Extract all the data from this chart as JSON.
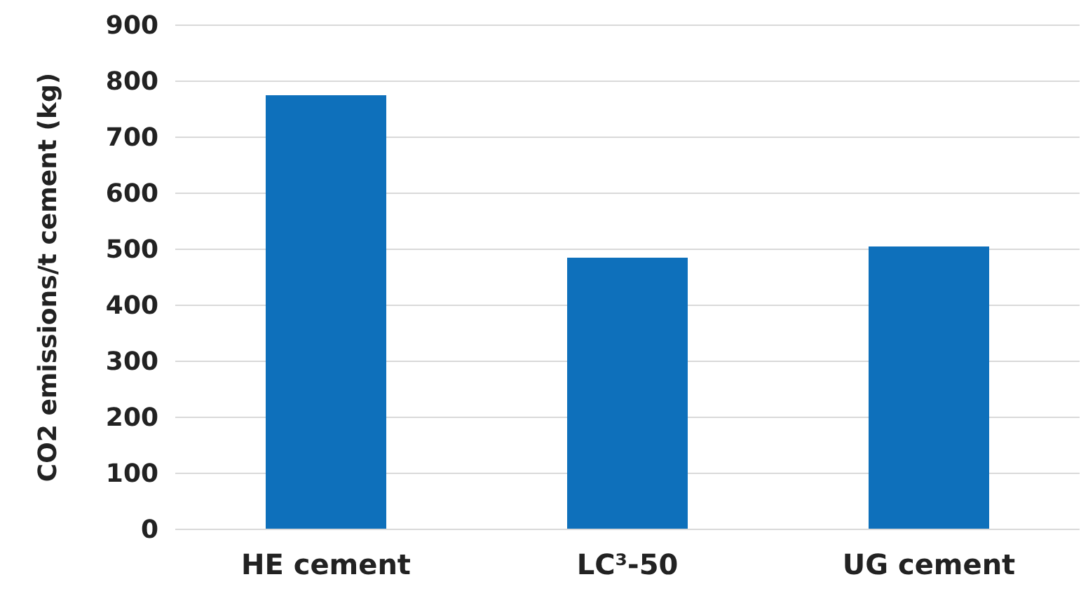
{
  "chart_data": {
    "type": "bar",
    "ylabel": "CO2 emissions/t cement (kg)",
    "categories": [
      "HE cement",
      "LC³-50",
      "UG cement"
    ],
    "values": [
      775,
      485,
      505
    ],
    "color": "#0e70bb",
    "ylim": [
      0,
      900
    ],
    "yticks": [
      0,
      100,
      200,
      300,
      400,
      500,
      600,
      700,
      800,
      900
    ],
    "grid": "y"
  }
}
